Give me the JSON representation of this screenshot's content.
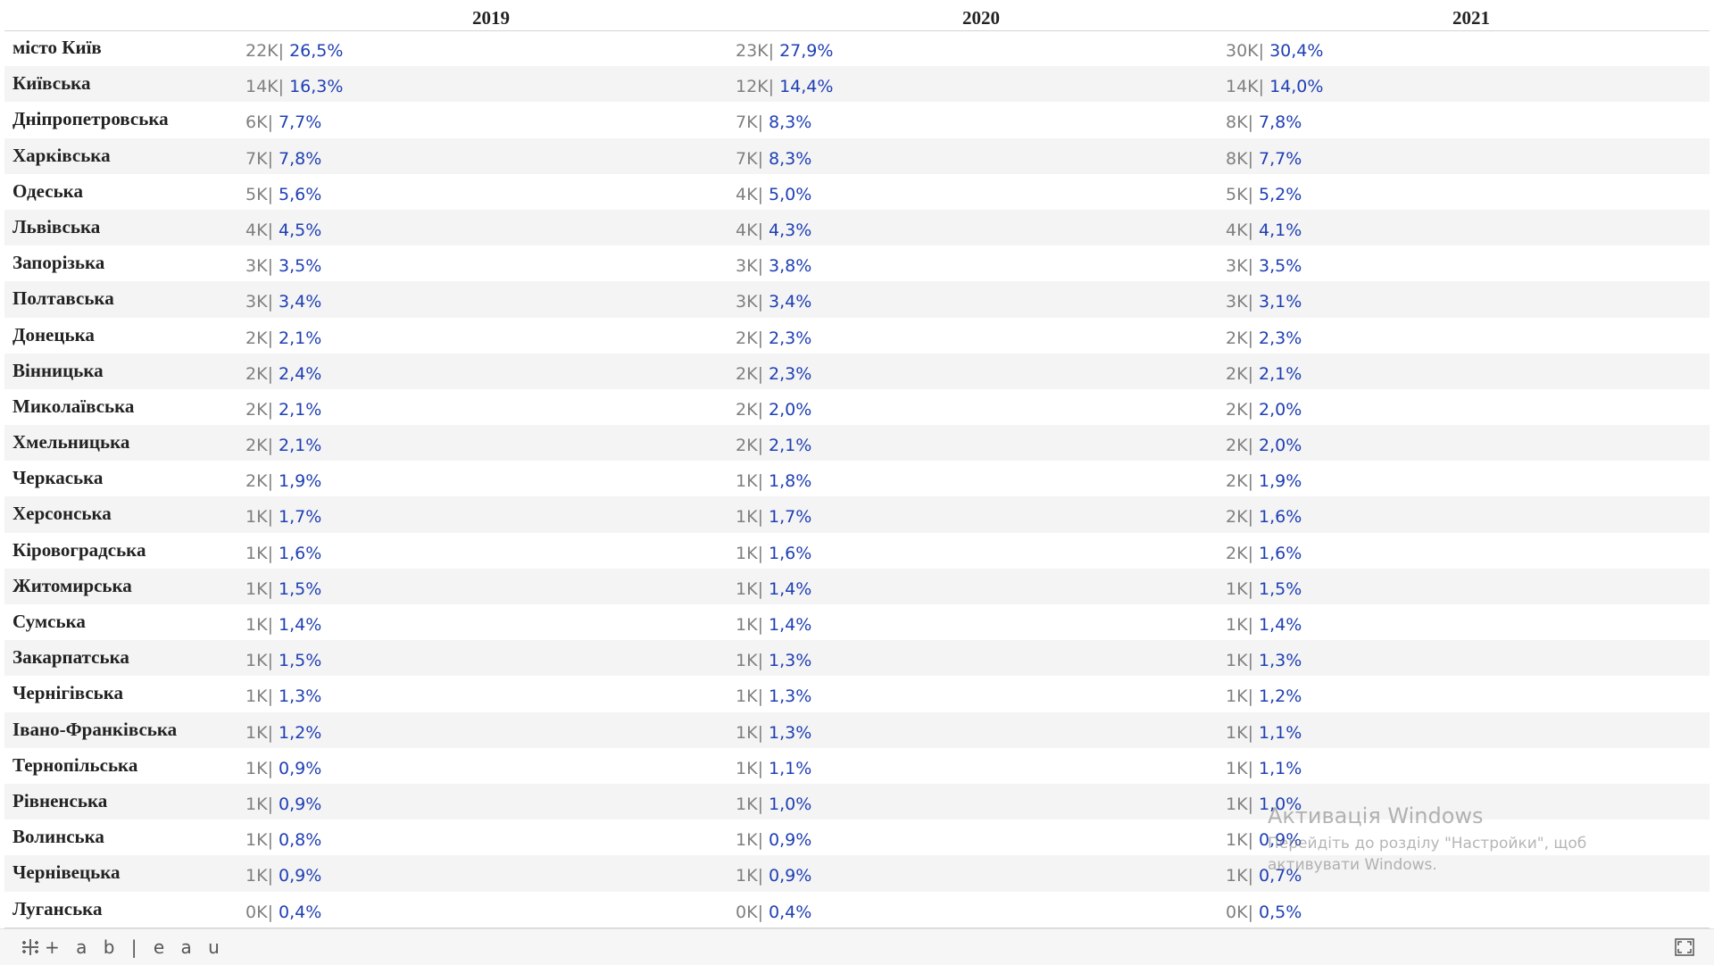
{
  "header": {
    "years": [
      "2019",
      "2020",
      "2021"
    ]
  },
  "table": {
    "rows": [
      {
        "region": "місто Київ",
        "cells": [
          {
            "count": "22K",
            "pct": "26,5%"
          },
          {
            "count": "23K",
            "pct": "27,9%"
          },
          {
            "count": "30K",
            "pct": "30,4%"
          }
        ]
      },
      {
        "region": "Київська",
        "cells": [
          {
            "count": "14K",
            "pct": "16,3%"
          },
          {
            "count": "12K",
            "pct": "14,4%"
          },
          {
            "count": "14K",
            "pct": "14,0%"
          }
        ]
      },
      {
        "region": "Дніпропетровська",
        "cells": [
          {
            "count": "6K",
            "pct": "7,7%"
          },
          {
            "count": "7K",
            "pct": "8,3%"
          },
          {
            "count": "8K",
            "pct": "7,8%"
          }
        ]
      },
      {
        "region": "Харківська",
        "cells": [
          {
            "count": "7K",
            "pct": "7,8%"
          },
          {
            "count": "7K",
            "pct": "8,3%"
          },
          {
            "count": "8K",
            "pct": "7,7%"
          }
        ]
      },
      {
        "region": "Одеська",
        "cells": [
          {
            "count": "5K",
            "pct": "5,6%"
          },
          {
            "count": "4K",
            "pct": "5,0%"
          },
          {
            "count": "5K",
            "pct": "5,2%"
          }
        ]
      },
      {
        "region": "Львівська",
        "cells": [
          {
            "count": "4K",
            "pct": "4,5%"
          },
          {
            "count": "4K",
            "pct": "4,3%"
          },
          {
            "count": "4K",
            "pct": "4,1%"
          }
        ]
      },
      {
        "region": "Запорізька",
        "cells": [
          {
            "count": "3K",
            "pct": "3,5%"
          },
          {
            "count": "3K",
            "pct": "3,8%"
          },
          {
            "count": "3K",
            "pct": "3,5%"
          }
        ]
      },
      {
        "region": "Полтавська",
        "cells": [
          {
            "count": "3K",
            "pct": "3,4%"
          },
          {
            "count": "3K",
            "pct": "3,4%"
          },
          {
            "count": "3K",
            "pct": "3,1%"
          }
        ]
      },
      {
        "region": "Донецька",
        "cells": [
          {
            "count": "2K",
            "pct": "2,1%"
          },
          {
            "count": "2K",
            "pct": "2,3%"
          },
          {
            "count": "2K",
            "pct": "2,3%"
          }
        ]
      },
      {
        "region": "Вінницька",
        "cells": [
          {
            "count": "2K",
            "pct": "2,4%"
          },
          {
            "count": "2K",
            "pct": "2,3%"
          },
          {
            "count": "2K",
            "pct": "2,1%"
          }
        ]
      },
      {
        "region": "Миколаївська",
        "cells": [
          {
            "count": "2K",
            "pct": "2,1%"
          },
          {
            "count": "2K",
            "pct": "2,0%"
          },
          {
            "count": "2K",
            "pct": "2,0%"
          }
        ]
      },
      {
        "region": "Хмельницька",
        "cells": [
          {
            "count": "2K",
            "pct": "2,1%"
          },
          {
            "count": "2K",
            "pct": "2,1%"
          },
          {
            "count": "2K",
            "pct": "2,0%"
          }
        ]
      },
      {
        "region": "Черкаська",
        "cells": [
          {
            "count": "2K",
            "pct": "1,9%"
          },
          {
            "count": "1K",
            "pct": "1,8%"
          },
          {
            "count": "2K",
            "pct": "1,9%"
          }
        ]
      },
      {
        "region": "Херсонська",
        "cells": [
          {
            "count": "1K",
            "pct": "1,7%"
          },
          {
            "count": "1K",
            "pct": "1,7%"
          },
          {
            "count": "2K",
            "pct": "1,6%"
          }
        ]
      },
      {
        "region": "Кіровоградська",
        "cells": [
          {
            "count": "1K",
            "pct": "1,6%"
          },
          {
            "count": "1K",
            "pct": "1,6%"
          },
          {
            "count": "2K",
            "pct": "1,6%"
          }
        ]
      },
      {
        "region": "Житомирська",
        "cells": [
          {
            "count": "1K",
            "pct": "1,5%"
          },
          {
            "count": "1K",
            "pct": "1,4%"
          },
          {
            "count": "1K",
            "pct": "1,5%"
          }
        ]
      },
      {
        "region": "Сумська",
        "cells": [
          {
            "count": "1K",
            "pct": "1,4%"
          },
          {
            "count": "1K",
            "pct": "1,4%"
          },
          {
            "count": "1K",
            "pct": "1,4%"
          }
        ]
      },
      {
        "region": "Закарпатська",
        "cells": [
          {
            "count": "1K",
            "pct": "1,5%"
          },
          {
            "count": "1K",
            "pct": "1,3%"
          },
          {
            "count": "1K",
            "pct": "1,3%"
          }
        ]
      },
      {
        "region": "Чернігівська",
        "cells": [
          {
            "count": "1K",
            "pct": "1,3%"
          },
          {
            "count": "1K",
            "pct": "1,3%"
          },
          {
            "count": "1K",
            "pct": "1,2%"
          }
        ]
      },
      {
        "region": "Івано-Франківська",
        "cells": [
          {
            "count": "1K",
            "pct": "1,2%"
          },
          {
            "count": "1K",
            "pct": "1,3%"
          },
          {
            "count": "1K",
            "pct": "1,1%"
          }
        ]
      },
      {
        "region": "Тернопільська",
        "cells": [
          {
            "count": "1K",
            "pct": "0,9%"
          },
          {
            "count": "1K",
            "pct": "1,1%"
          },
          {
            "count": "1K",
            "pct": "1,1%"
          }
        ]
      },
      {
        "region": "Рівненська",
        "cells": [
          {
            "count": "1K",
            "pct": "0,9%"
          },
          {
            "count": "1K",
            "pct": "1,0%"
          },
          {
            "count": "1K",
            "pct": "1,0%"
          }
        ]
      },
      {
        "region": "Волинська",
        "cells": [
          {
            "count": "1K",
            "pct": "0,8%"
          },
          {
            "count": "1K",
            "pct": "0,9%"
          },
          {
            "count": "1K",
            "pct": "0,9%"
          }
        ]
      },
      {
        "region": "Чернівецька",
        "cells": [
          {
            "count": "1K",
            "pct": "0,9%"
          },
          {
            "count": "1K",
            "pct": "0,9%"
          },
          {
            "count": "1K",
            "pct": "0,7%"
          }
        ]
      },
      {
        "region": "Луганська",
        "cells": [
          {
            "count": "0K",
            "pct": "0,4%"
          },
          {
            "count": "0K",
            "pct": "0,4%"
          },
          {
            "count": "0K",
            "pct": "0,5%"
          }
        ]
      }
    ],
    "separator": "|"
  },
  "toolbar": {
    "logo_text": "+ a b | e a u",
    "logo_icon": "tableau-cross-icon",
    "fullscreen_icon": "fullscreen-icon"
  },
  "watermark": {
    "title": "Активація Windows",
    "text": "Перейдіть до розділу \"Настройки\", щоб активувати Windows."
  },
  "colors": {
    "count": "#808080",
    "percent": "#1f3fb4",
    "row_shade": "#f4f4f4",
    "header_text": "#222222"
  }
}
